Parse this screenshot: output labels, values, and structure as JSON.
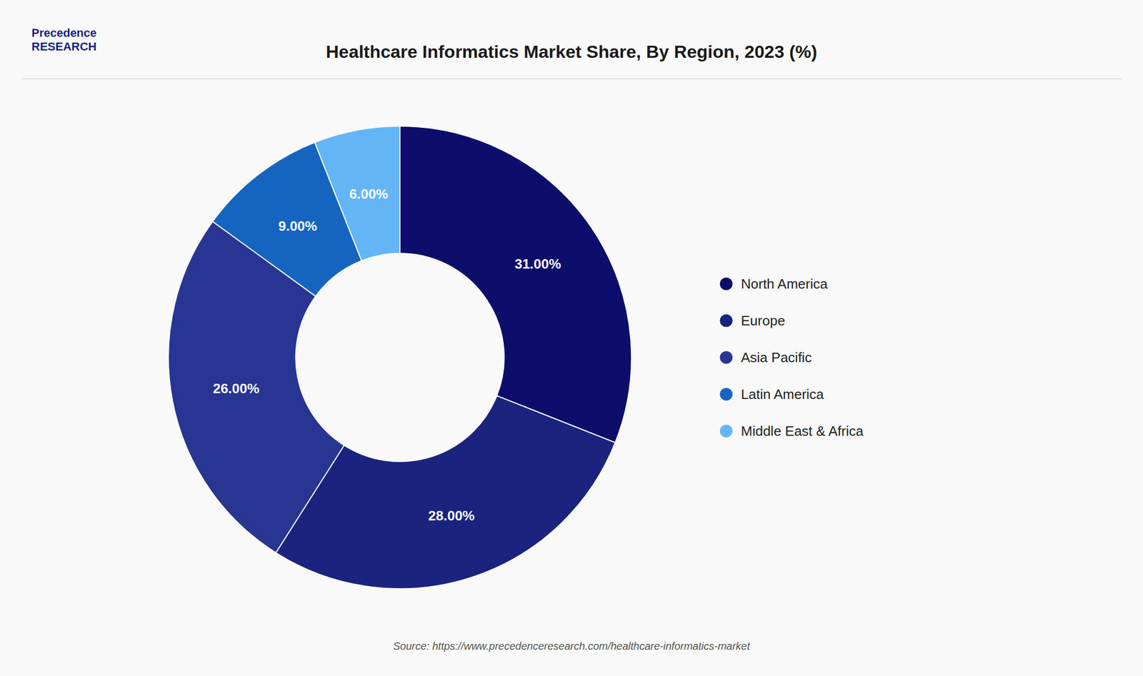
{
  "chart_data": {
    "type": "donut",
    "title": "Healthcare Informatics Market Share, By Region, 2023 (%)",
    "categories": [
      "North America",
      "Europe",
      "Asia Pacific",
      "Latin America",
      "Middle East & Africa"
    ],
    "values": [
      31.0,
      28.0,
      26.0,
      9.0,
      6.0
    ],
    "value_labels": [
      "31.00%",
      "28.00%",
      "26.00%",
      "9.00%",
      "6.00%"
    ],
    "colors": [
      "#0d0d6b",
      "#1a237e",
      "#283593",
      "#1565c0",
      "#64b5f6"
    ],
    "data_labels": true,
    "legend": "right",
    "annotations": [
      "Precedence",
      "RESEARCH",
      "Source: https://www.precedenceresearch.com/healthcare-informatics-market"
    ]
  }
}
